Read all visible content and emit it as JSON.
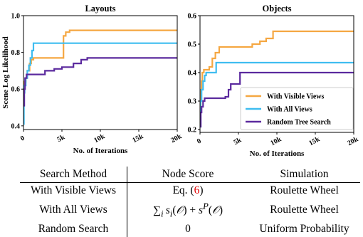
{
  "chart_data": [
    {
      "type": "line",
      "title": "Layouts",
      "xlabel": "No. of Iterations",
      "ylabel": "Scene Log Likelihood",
      "xlim": [
        0,
        20000
      ],
      "ylim": [
        0.38,
        1.0
      ],
      "xticks": [
        0,
        5000,
        10000,
        15000,
        20000
      ],
      "xticklabels": [
        "0",
        "5k",
        "10k",
        "15k",
        "20k"
      ],
      "yticks": [
        0.4,
        0.6,
        0.8,
        1.0
      ],
      "yticklabels": [
        "0.4",
        "0.6",
        "0.8",
        "1.0"
      ],
      "series": [
        {
          "name": "With Visible Views",
          "color": "#f5a742",
          "x": [
            0,
            80,
            150,
            300,
            500,
            800,
            1000,
            1300,
            1600,
            5000,
            5200,
            5500,
            6000,
            20000
          ],
          "y": [
            0.54,
            0.62,
            0.64,
            0.66,
            0.7,
            0.74,
            0.76,
            0.77,
            0.77,
            0.77,
            0.89,
            0.91,
            0.92,
            0.92
          ]
        },
        {
          "name": "With All Views",
          "color": "#3fbdf0",
          "x": [
            0,
            60,
            150,
            300,
            500,
            700,
            900,
            1100,
            1300,
            20000
          ],
          "y": [
            0.41,
            0.58,
            0.62,
            0.66,
            0.7,
            0.73,
            0.77,
            0.81,
            0.85,
            0.85
          ]
        },
        {
          "name": "Random Tree Search",
          "color": "#5b2a9e",
          "x": [
            0,
            100,
            200,
            400,
            2000,
            2800,
            4000,
            5000,
            6500,
            7500,
            8300,
            20000
          ],
          "y": [
            0.51,
            0.6,
            0.66,
            0.68,
            0.68,
            0.7,
            0.71,
            0.72,
            0.74,
            0.76,
            0.77,
            0.77
          ]
        }
      ],
      "legend": false,
      "grid": false
    },
    {
      "type": "line",
      "title": "Objects",
      "xlabel": "No. of Iterations",
      "ylabel": "",
      "xlim": [
        0,
        20000
      ],
      "ylim": [
        0.19,
        0.6
      ],
      "xticks": [
        0,
        5000,
        10000,
        15000,
        20000
      ],
      "xticklabels": [
        "0",
        "5k",
        "10k",
        "15k",
        "20k"
      ],
      "yticks": [
        0.2,
        0.3,
        0.4,
        0.5,
        0.6
      ],
      "yticklabels": [
        "0.2",
        "0.3",
        "0.4",
        "0.5",
        "0.6"
      ],
      "series": [
        {
          "name": "With Visible Views",
          "color": "#f5a742",
          "x": [
            0,
            100,
            200,
            300,
            500,
            800,
            1200,
            1600,
            2000,
            2500,
            6000,
            6800,
            7800,
            8600,
            9500,
            20000
          ],
          "y": [
            0.27,
            0.34,
            0.37,
            0.4,
            0.41,
            0.41,
            0.42,
            0.45,
            0.47,
            0.49,
            0.49,
            0.5,
            0.51,
            0.52,
            0.545,
            0.545
          ]
        },
        {
          "name": "With All Views",
          "color": "#3fbdf0",
          "x": [
            0,
            80,
            200,
            400,
            600,
            800,
            1200,
            1800,
            2100,
            20000
          ],
          "y": [
            0.21,
            0.3,
            0.34,
            0.37,
            0.39,
            0.4,
            0.4,
            0.4,
            0.435,
            0.435
          ]
        },
        {
          "name": "Random Tree Search",
          "color": "#5b2a9e",
          "x": [
            0,
            100,
            200,
            400,
            600,
            1200,
            2000,
            3300,
            3700,
            4000,
            5200,
            20000
          ],
          "y": [
            0.21,
            0.26,
            0.28,
            0.3,
            0.31,
            0.31,
            0.31,
            0.315,
            0.34,
            0.36,
            0.4,
            0.4
          ]
        }
      ],
      "legend": true,
      "legend_position": "lower-right",
      "grid": false
    }
  ],
  "table": {
    "headers": [
      "Search Method",
      "Node Score",
      "Simulation"
    ],
    "rows": [
      {
        "method": "With Visible Views",
        "score_prefix": "Eq. (",
        "score_ref": "6",
        "score_suffix": ")",
        "simulation": "Roulette Wheel"
      },
      {
        "method": "With All Views",
        "score_math": "∑i si(𝒪) + sP(𝒪)",
        "simulation": "Roulette Wheel"
      },
      {
        "method": "Random Search",
        "score": "0",
        "simulation": "Uniform Probability"
      }
    ]
  }
}
